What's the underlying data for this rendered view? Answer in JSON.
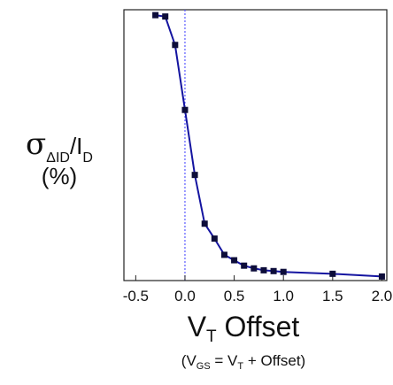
{
  "chart_data": {
    "type": "line",
    "x_ticks": [
      "-0.5",
      "0.0",
      "0.5",
      "1.0",
      "1.5",
      "2.0"
    ],
    "xlim": [
      -0.62,
      2.05
    ],
    "ylim": [
      0,
      100
    ],
    "y_tick_labels": false,
    "vline_x": 0.0,
    "line_color": "#1414a0",
    "marker_color": "#0d0d3a",
    "vline_color": "#5a5aff",
    "ylabel": {
      "symbol": "σ",
      "sub1": "ΔI",
      "sub2": "D",
      "mid": "/I",
      "sub3": "D",
      "units": "(%)"
    },
    "xlabel": {
      "main": "V",
      "sub": "T",
      "rest": " Offset"
    },
    "note": {
      "open": "(V",
      "sub1": "GS",
      "mid": " = V",
      "sub2": "T",
      "rest": " + Offset)"
    },
    "series": [
      {
        "x": [
          -0.3,
          -0.2,
          -0.1,
          0.0,
          0.1,
          0.2,
          0.3,
          0.4,
          0.5,
          0.6,
          0.7,
          0.8,
          0.9,
          1.0,
          1.5,
          2.0
        ],
        "y": [
          98.0,
          97.5,
          87.0,
          63.0,
          39.0,
          21.0,
          15.5,
          9.5,
          7.5,
          5.5,
          4.5,
          3.8,
          3.5,
          3.2,
          2.5,
          1.5
        ]
      }
    ]
  }
}
